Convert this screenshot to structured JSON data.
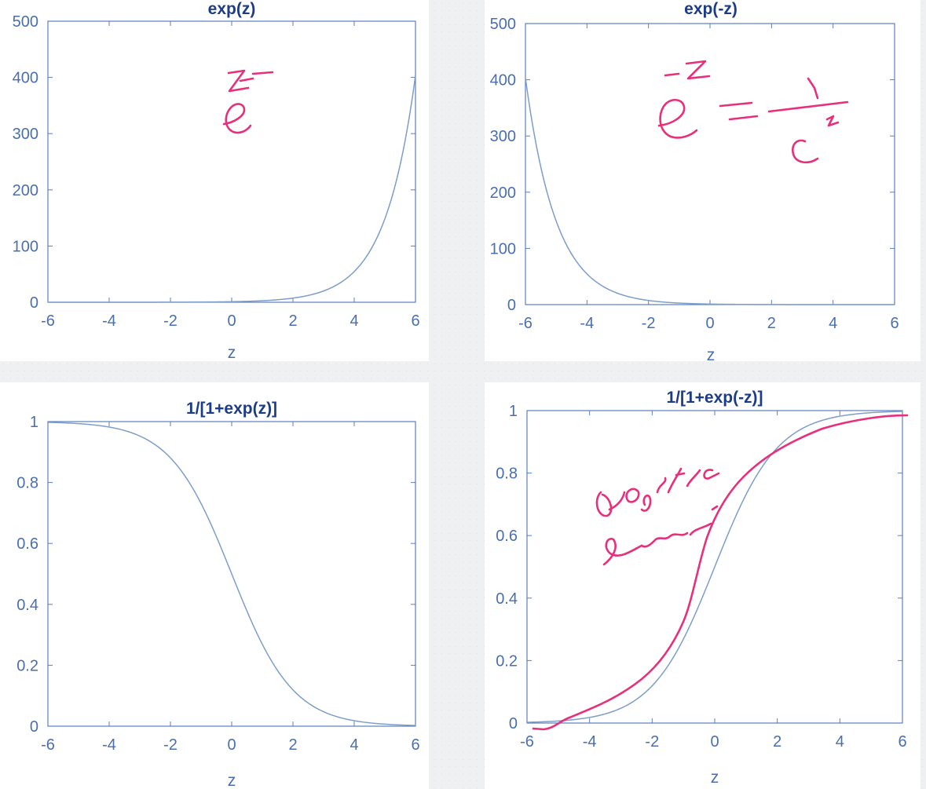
{
  "chart_data": [
    {
      "type": "line",
      "title": "exp(z)",
      "xlabel": "z",
      "ylabel": "",
      "xlim": [
        -6,
        6
      ],
      "ylim": [
        0,
        500
      ],
      "xticks": [
        "-6",
        "-4",
        "-2",
        "0",
        "2",
        "4",
        "6"
      ],
      "yticks": [
        "0",
        "100",
        "200",
        "300",
        "400",
        "500"
      ],
      "function": "exp(z)",
      "x": [
        -6,
        -4,
        -2,
        0,
        2,
        4,
        5,
        6
      ],
      "y": [
        0.0025,
        0.018,
        0.135,
        1,
        7.39,
        54.6,
        148.4,
        403.4
      ],
      "grid": false,
      "line_color": "#7d9dca",
      "annotations": [
        "handwritten: e^z"
      ]
    },
    {
      "type": "line",
      "title": "exp(-z)",
      "xlabel": "z",
      "ylabel": "",
      "xlim": [
        -6,
        6
      ],
      "ylim": [
        0,
        500
      ],
      "xticks": [
        "-6",
        "-4",
        "-2",
        "0",
        "2",
        "4",
        "6"
      ],
      "yticks": [
        "0",
        "100",
        "200",
        "300",
        "400",
        "500"
      ],
      "function": "exp(-z)",
      "x": [
        -6,
        -5,
        -4,
        -2,
        0,
        2,
        4,
        6
      ],
      "y": [
        403.4,
        148.4,
        54.6,
        7.39,
        1,
        0.135,
        0.018,
        0.0025
      ],
      "grid": false,
      "line_color": "#7d9dca",
      "annotations": [
        "handwritten: e^-z = 1 / e^z"
      ]
    },
    {
      "type": "line",
      "title": "1/[1+exp(z)]",
      "xlabel": "z",
      "ylabel": "",
      "xlim": [
        -6,
        6
      ],
      "ylim": [
        0,
        1
      ],
      "xticks": [
        "-6",
        "-4",
        "-2",
        "0",
        "2",
        "4",
        "6"
      ],
      "yticks": [
        "0",
        "0.2",
        "0.4",
        "0.6",
        "0.8",
        "1"
      ],
      "function": "1/(1+exp(z))",
      "x": [
        -6,
        -4,
        -2,
        0,
        2,
        4,
        6
      ],
      "y": [
        0.998,
        0.982,
        0.881,
        0.5,
        0.119,
        0.018,
        0.002
      ],
      "grid": false,
      "line_color": "#7d9dca"
    },
    {
      "type": "line",
      "title": "1/[1+exp(-z)]",
      "xlabel": "z",
      "ylabel": "",
      "xlim": [
        -6,
        6
      ],
      "ylim": [
        0,
        1
      ],
      "xticks": [
        "-6",
        "-4",
        "-2",
        "0",
        "2",
        "4",
        "6"
      ],
      "yticks": [
        "0",
        "0.2",
        "0.4",
        "0.6",
        "0.8",
        "1"
      ],
      "function": "1/(1+exp(-z))",
      "x": [
        -6,
        -4,
        -2,
        0,
        2,
        4,
        6
      ],
      "y": [
        0.002,
        0.018,
        0.119,
        0.5,
        0.881,
        0.982,
        0.998
      ],
      "grid": false,
      "line_color": "#7d9dca",
      "annotations": [
        "handwritten: logistic function",
        "hand-drawn pink sigmoid trace"
      ]
    }
  ],
  "colors": {
    "axis": "#5c7fbd",
    "text": "#4a6fb0",
    "title": "#1d3c88",
    "curve": "#7d9dca",
    "ink": "#e8307a"
  }
}
